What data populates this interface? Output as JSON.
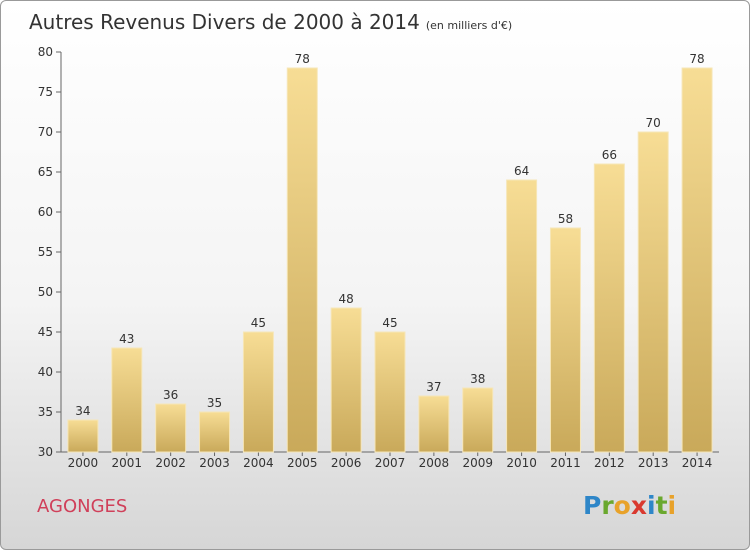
{
  "chart_data": {
    "type": "bar",
    "title": "Autres Revenus Divers de 2000 à 2014",
    "subtitle": "(en milliers d'€)",
    "categories": [
      "2000",
      "2001",
      "2002",
      "2003",
      "2004",
      "2005",
      "2006",
      "2007",
      "2008",
      "2009",
      "2010",
      "2011",
      "2012",
      "2013",
      "2014"
    ],
    "values": [
      34,
      43,
      36,
      35,
      45,
      78,
      48,
      45,
      37,
      38,
      64,
      58,
      66,
      70,
      78
    ],
    "ylim": [
      30,
      80
    ],
    "yticks": [
      30,
      35,
      40,
      45,
      50,
      55,
      60,
      65,
      70,
      75,
      80
    ],
    "grid": false,
    "bar_color": "#e8c878"
  },
  "footer": {
    "town": "AGONGES",
    "logo": [
      "P",
      "r",
      "o",
      "x",
      "i",
      "t",
      "i"
    ]
  }
}
